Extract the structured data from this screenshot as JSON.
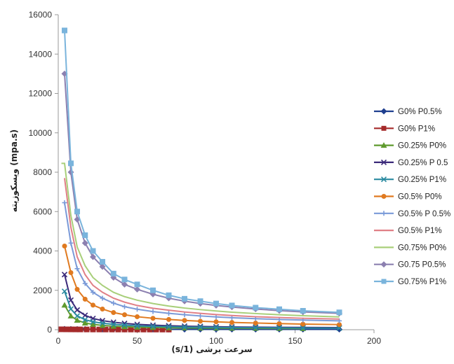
{
  "chart_data": {
    "type": "line",
    "title": "",
    "xlabel": "(s/1)  سرعت برشی",
    "ylabel": "ویسکوزیته (mpa.s)",
    "xlim": [
      0,
      200
    ],
    "ylim": [
      0,
      16000
    ],
    "x_ticks": [
      "0",
      "50",
      "100",
      "150",
      "200"
    ],
    "y_ticks": [
      "0",
      "2000",
      "4000",
      "6000",
      "8000",
      "10000",
      "12000",
      "14000",
      "16000"
    ],
    "grid": false,
    "legend_position": "right",
    "series": [
      {
        "name": "G0% P0.5%",
        "color": "#1f3f8f",
        "marker": "diamond",
        "x": [
          4,
          8,
          12,
          17,
          22,
          28,
          35,
          42,
          50,
          60,
          70,
          80,
          90,
          100,
          110,
          125,
          140,
          155,
          178
        ],
        "y": [
          35,
          30,
          28,
          26,
          25,
          24,
          23,
          22,
          21,
          21,
          20,
          20,
          19,
          19,
          18,
          18,
          17,
          17,
          16
        ]
      },
      {
        "name": "G0% P1%",
        "color": "#a52a2a",
        "marker": "square",
        "x": [
          2,
          5,
          8,
          11,
          14,
          18,
          22,
          26,
          30,
          34,
          38,
          42,
          46,
          50,
          54,
          58,
          62,
          66,
          70
        ],
        "y": [
          20,
          18,
          16,
          15,
          14,
          13,
          12,
          12,
          11,
          11,
          10,
          10,
          10,
          9,
          9,
          9,
          9,
          8,
          8
        ]
      },
      {
        "name": "G0.25% P0%",
        "color": "#5f9a2e",
        "marker": "triangle",
        "x": [
          4,
          8,
          12,
          17,
          22,
          28,
          35,
          42,
          50,
          60,
          70,
          80,
          90,
          100,
          110,
          125,
          140,
          155
        ],
        "y": [
          1250,
          700,
          480,
          340,
          270,
          220,
          180,
          150,
          130,
          115,
          100,
          92,
          85,
          80,
          75,
          70,
          65,
          60
        ]
      },
      {
        "name": "G0.25% P 0.5",
        "color": "#3b2a7a",
        "marker": "x",
        "x": [
          4,
          8,
          12,
          17,
          22,
          28,
          35,
          42,
          50,
          60,
          70,
          80,
          90,
          100,
          110,
          125,
          140,
          155,
          178
        ],
        "y": [
          2800,
          1500,
          1000,
          730,
          570,
          460,
          380,
          320,
          270,
          230,
          200,
          180,
          165,
          150,
          140,
          130,
          120,
          115,
          105
        ]
      },
      {
        "name": "G0.25% P1%",
        "color": "#2a8aa0",
        "marker": "x",
        "x": [
          4,
          8,
          12,
          17,
          22,
          28,
          35,
          42,
          50,
          60,
          70,
          80,
          90,
          100,
          110,
          125,
          140,
          155,
          178
        ],
        "y": [
          1950,
          1050,
          700,
          510,
          400,
          330,
          270,
          230,
          195,
          170,
          150,
          135,
          125,
          115,
          108,
          100,
          92,
          86,
          80
        ]
      },
      {
        "name": "G0.5% P0%",
        "color": "#e07a20",
        "marker": "circle",
        "x": [
          4,
          8,
          12,
          17,
          22,
          28,
          35,
          42,
          50,
          60,
          70,
          80,
          90,
          100,
          110,
          125,
          140,
          155,
          178
        ],
        "y": [
          4250,
          2900,
          2050,
          1550,
          1250,
          1050,
          870,
          760,
          660,
          580,
          520,
          470,
          430,
          400,
          370,
          340,
          310,
          285,
          260
        ]
      },
      {
        "name": "G0.5% P 0.5%",
        "color": "#7a9ad8",
        "marker": "plus",
        "x": [
          4,
          8,
          12,
          17,
          22,
          28,
          35,
          42,
          50,
          60,
          70,
          80,
          90,
          100,
          110,
          125,
          140,
          155,
          178
        ],
        "y": [
          6450,
          4400,
          3100,
          2350,
          1900,
          1600,
          1350,
          1170,
          1040,
          920,
          830,
          760,
          700,
          650,
          610,
          560,
          520,
          490,
          450
        ]
      },
      {
        "name": "G0.5% P1%",
        "color": "#e07f86",
        "marker": "none",
        "x": [
          4,
          8,
          12,
          17,
          22,
          28,
          35,
          42,
          50,
          60,
          70,
          80,
          90,
          100,
          110,
          125,
          140,
          155,
          178
        ],
        "y": [
          7700,
          5200,
          3700,
          2800,
          2250,
          1900,
          1600,
          1400,
          1230,
          1090,
          990,
          900,
          830,
          770,
          720,
          660,
          620,
          580,
          540
        ]
      },
      {
        "name": "G0.75% P0%",
        "color": "#a8cf7a",
        "marker": "none",
        "x": [
          2,
          4,
          8,
          12,
          17,
          22,
          28,
          35,
          42,
          50,
          60,
          70,
          80,
          90,
          100,
          110,
          125,
          140,
          155,
          178
        ],
        "y": [
          8450,
          8450,
          5800,
          4200,
          3250,
          2650,
          2250,
          1900,
          1680,
          1500,
          1330,
          1200,
          1100,
          1020,
          950,
          890,
          820,
          760,
          710,
          650
        ]
      },
      {
        "name": "G0.75 P0.5%",
        "color": "#8c80b0",
        "marker": "diamond",
        "x": [
          4,
          8,
          12,
          17,
          22,
          28,
          35,
          42,
          50,
          60,
          70,
          80,
          90,
          100,
          110,
          125,
          140,
          155,
          178
        ],
        "y": [
          13000,
          8000,
          5600,
          4400,
          3700,
          3200,
          2650,
          2300,
          2050,
          1800,
          1600,
          1450,
          1330,
          1230,
          1150,
          1050,
          970,
          900,
          830
        ]
      },
      {
        "name": "G0.75% P1%",
        "color": "#7ab4dc",
        "marker": "square",
        "x": [
          4,
          8,
          12,
          17,
          22,
          28,
          35,
          42,
          50,
          60,
          70,
          80,
          90,
          100,
          110,
          125,
          140,
          155,
          178
        ],
        "y": [
          15200,
          8450,
          6000,
          4800,
          4000,
          3450,
          2850,
          2550,
          2300,
          2000,
          1750,
          1570,
          1450,
          1330,
          1230,
          1120,
          1040,
          960,
          880
        ]
      }
    ]
  }
}
